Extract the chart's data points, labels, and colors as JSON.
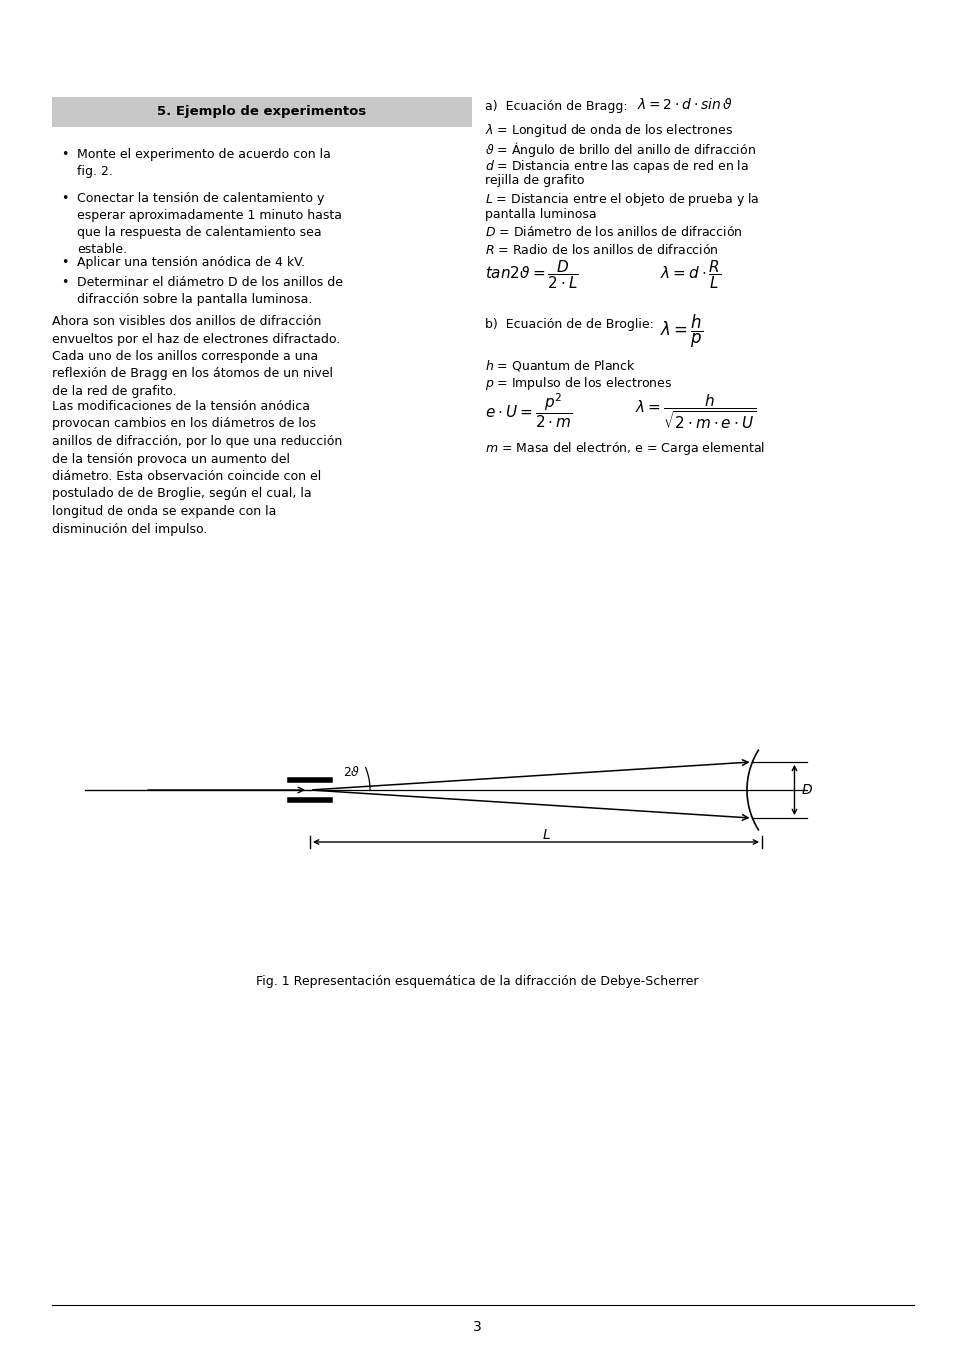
{
  "title_box_text": "5. Ejemplo de experimentos",
  "title_box_bg": "#c8c8c8",
  "bullet1": "Monte el experimento de acuerdo con la\nfig. 2.",
  "bullet2": "Conectar la tensión de calentamiento y\nesperar aproximadamente 1 minuto hasta\nque la respuesta de calentamiento sea\nestable.",
  "bullet3": "Aplicar una tensión anódica de 4 kV.",
  "bullet4": "Determinar el diámetro D de los anillos de\ndifracción sobre la pantalla luminosa.",
  "para1": "Ahora son visibles dos anillos de difracción\nenvueltos por el haz de electrones difractado.\nCada uno de los anillos corresponde a una\nreflexión de Bragg en los átomos de un nivel\nde la red de grafito.",
  "para2": "Las modificaciones de la tensión anódica\nprovocan cambios en los diámetros de los\nanillos de difracción, por lo que una reducción\nde la tensión provoca un aumento del\ndiámetro. Esta observación coincide con el\npostulado de de Broglie, según el cual, la\nlongitud de onda se expande con la\ndisminución del impulso.",
  "lam_desc": "= Longitud de onda de los electrones",
  "vartheta_desc": "= Ángulo de brillo del anillo de difracción",
  "d_desc": "= Distancia entre las capas de red en la",
  "d_desc2": "rejilla de grafito",
  "L_desc": "= Distancia entre el objeto de prueba y la",
  "L_desc2": "pantalla luminosa",
  "D_desc": "= Diámetro de los anillos de difracción",
  "R_desc": "= Radio de los anillos de difracción",
  "h_desc": "= Quantum de Planck",
  "p_desc": "= Impulso de los electrones",
  "m_desc": "= Masa del electrón, e = Carga elemental",
  "fig_caption": "Fig. 1 Representación esquemática de la difracción de Debye-Scherrer",
  "page_number": "3",
  "bg_color": "#ffffff",
  "text_color": "#000000"
}
